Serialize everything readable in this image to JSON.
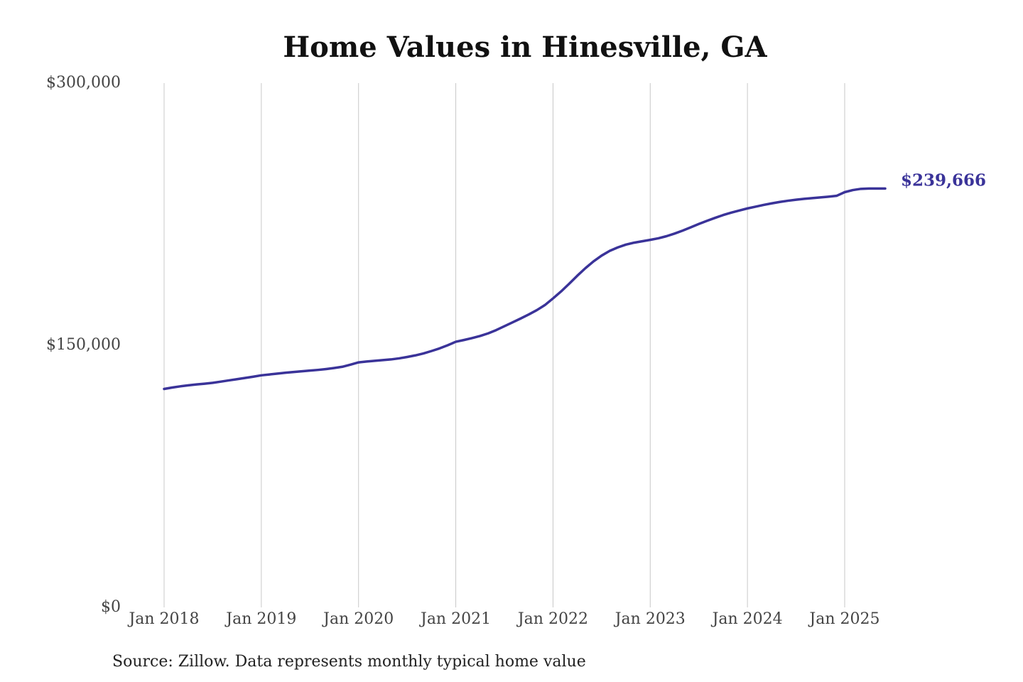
{
  "chart_data": {
    "type": "line",
    "title": "Home Values in Hinesville, GA",
    "source": "Source: Zillow. Data represents monthly typical home value",
    "x": [
      "2018-01",
      "2018-02",
      "2018-03",
      "2018-04",
      "2018-05",
      "2018-06",
      "2018-07",
      "2018-08",
      "2018-09",
      "2018-10",
      "2018-11",
      "2018-12",
      "2019-01",
      "2019-02",
      "2019-03",
      "2019-04",
      "2019-05",
      "2019-06",
      "2019-07",
      "2019-08",
      "2019-09",
      "2019-10",
      "2019-11",
      "2019-12",
      "2020-01",
      "2020-02",
      "2020-03",
      "2020-04",
      "2020-05",
      "2020-06",
      "2020-07",
      "2020-08",
      "2020-09",
      "2020-10",
      "2020-11",
      "2020-12",
      "2021-01",
      "2021-02",
      "2021-03",
      "2021-04",
      "2021-05",
      "2021-06",
      "2021-07",
      "2021-08",
      "2021-09",
      "2021-10",
      "2021-11",
      "2021-12",
      "2022-01",
      "2022-02",
      "2022-03",
      "2022-04",
      "2022-05",
      "2022-06",
      "2022-07",
      "2022-08",
      "2022-09",
      "2022-10",
      "2022-11",
      "2022-12",
      "2023-01",
      "2023-02",
      "2023-03",
      "2023-04",
      "2023-05",
      "2023-06",
      "2023-07",
      "2023-08",
      "2023-09",
      "2023-10",
      "2023-11",
      "2023-12",
      "2024-01",
      "2024-02",
      "2024-03",
      "2024-04",
      "2024-05",
      "2024-06",
      "2024-07",
      "2024-08",
      "2024-09",
      "2024-10",
      "2024-11",
      "2024-12",
      "2025-01",
      "2025-02",
      "2025-03",
      "2025-04",
      "2025-05",
      "2025-06"
    ],
    "series": [
      {
        "name": "Typical home value",
        "color": "#3a3399",
        "values": [
          125000,
          125800,
          126500,
          127100,
          127600,
          128000,
          128500,
          129200,
          129900,
          130600,
          131300,
          132000,
          132800,
          133300,
          133800,
          134300,
          134700,
          135100,
          135500,
          135900,
          136400,
          137000,
          137700,
          138900,
          140200,
          140700,
          141100,
          141500,
          141900,
          142500,
          143300,
          144200,
          145300,
          146700,
          148200,
          150000,
          152000,
          153000,
          154100,
          155300,
          156800,
          158700,
          160900,
          163100,
          165300,
          167600,
          170100,
          173000,
          176800,
          180800,
          185200,
          189800,
          194100,
          198000,
          201300,
          204000,
          206000,
          207600,
          208700,
          209500,
          210300,
          211200,
          212400,
          213900,
          215600,
          217500,
          219400,
          221200,
          222900,
          224500,
          225900,
          227100,
          228300,
          229300,
          230300,
          231200,
          232000,
          232700,
          233300,
          233800,
          234200,
          234600,
          235000,
          235500,
          237600,
          238800,
          239500,
          239700,
          239700,
          239666
        ],
        "value_labels": [
          null,
          null,
          null,
          null,
          null,
          null,
          null,
          null,
          null,
          null,
          null,
          null,
          null,
          null,
          null,
          null,
          null,
          null,
          null,
          null,
          null,
          null,
          null,
          null,
          null,
          null,
          null,
          null,
          null,
          null,
          null,
          null,
          null,
          null,
          null,
          null,
          null,
          null,
          null,
          null,
          null,
          null,
          null,
          null,
          null,
          null,
          null,
          null,
          null,
          null,
          null,
          null,
          null,
          null,
          null,
          null,
          null,
          null,
          null,
          null,
          null,
          null,
          null,
          null,
          null,
          null,
          null,
          null,
          null,
          null,
          null,
          null,
          null,
          null,
          null,
          null,
          null,
          null,
          null,
          null,
          null,
          null,
          null,
          null,
          null,
          null,
          null,
          null,
          null,
          "$239,666"
        ]
      }
    ],
    "xlim": [
      "2018-01",
      "2025-06"
    ],
    "xticks": [
      {
        "value": "2018-01",
        "label": "Jan 2018"
      },
      {
        "value": "2019-01",
        "label": "Jan 2019"
      },
      {
        "value": "2020-01",
        "label": "Jan 2020"
      },
      {
        "value": "2021-01",
        "label": "Jan 2021"
      },
      {
        "value": "2022-01",
        "label": "Jan 2022"
      },
      {
        "value": "2023-01",
        "label": "Jan 2023"
      },
      {
        "value": "2024-01",
        "label": "Jan 2024"
      },
      {
        "value": "2025-01",
        "label": "Jan 2025"
      }
    ],
    "ylim": [
      0,
      300000
    ],
    "yticks": [
      {
        "value": 0,
        "label": "$0"
      },
      {
        "value": 150000,
        "label": "$150,000"
      },
      {
        "value": 300000,
        "label": "$300,000"
      }
    ],
    "grid": "x"
  }
}
